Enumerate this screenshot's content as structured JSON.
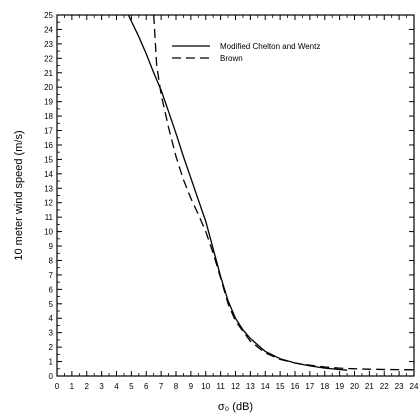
{
  "chart_data": {
    "type": "line",
    "xlabel": "σ₀ (dB)",
    "ylabel": "10 meter wind speed (m/s)",
    "xlim": [
      0,
      24
    ],
    "ylim": [
      0,
      25
    ],
    "grid": false,
    "legend_position": "top-right",
    "x_ticks": [
      "0",
      "1",
      "2",
      "3",
      "4",
      "5",
      "6",
      "7",
      "8",
      "9",
      "10",
      "11",
      "12",
      "13",
      "14",
      "15",
      "16",
      "17",
      "18",
      "19",
      "20",
      "21",
      "22",
      "23",
      "24"
    ],
    "y_ticks": [
      "0",
      "1",
      "2",
      "3",
      "4",
      "5",
      "6",
      "7",
      "8",
      "9",
      "10",
      "11",
      "12",
      "13",
      "14",
      "15",
      "16",
      "17",
      "18",
      "19",
      "20",
      "21",
      "22",
      "23",
      "24",
      "25"
    ],
    "series": [
      {
        "name": "Modified Chelton and Wentz",
        "style": "solid",
        "color": "#000000",
        "x": [
          4.8,
          5.5,
          6.0,
          6.5,
          7.0,
          7.5,
          8.0,
          8.5,
          9.0,
          9.5,
          10.0,
          10.5,
          11.0,
          11.5,
          12.0,
          12.5,
          13.0,
          14.0,
          15.0,
          16.0,
          17.0,
          18.0,
          19.0,
          19.5
        ],
        "y": [
          25.0,
          23.5,
          22.3,
          21.0,
          19.8,
          18.3,
          16.8,
          15.2,
          13.7,
          12.2,
          10.7,
          8.8,
          6.9,
          5.2,
          4.0,
          3.2,
          2.6,
          1.7,
          1.2,
          0.9,
          0.7,
          0.55,
          0.45,
          0.4
        ]
      },
      {
        "name": "Brown",
        "style": "dashed",
        "color": "#000000",
        "x": [
          6.5,
          6.7,
          7.0,
          7.5,
          8.0,
          8.5,
          9.0,
          9.5,
          10.0,
          10.5,
          11.0,
          11.5,
          12.0,
          13.0,
          14.0,
          15.0,
          16.0,
          17.0,
          18.0,
          19.0,
          20.0,
          21.0,
          22.0,
          23.0,
          24.0
        ],
        "y": [
          25.0,
          21.5,
          19.5,
          17.2,
          15.2,
          13.6,
          12.3,
          11.2,
          10.0,
          8.5,
          6.8,
          5.0,
          3.8,
          2.4,
          1.6,
          1.15,
          0.9,
          0.75,
          0.62,
          0.55,
          0.5,
          0.47,
          0.45,
          0.44,
          0.43
        ]
      }
    ]
  }
}
